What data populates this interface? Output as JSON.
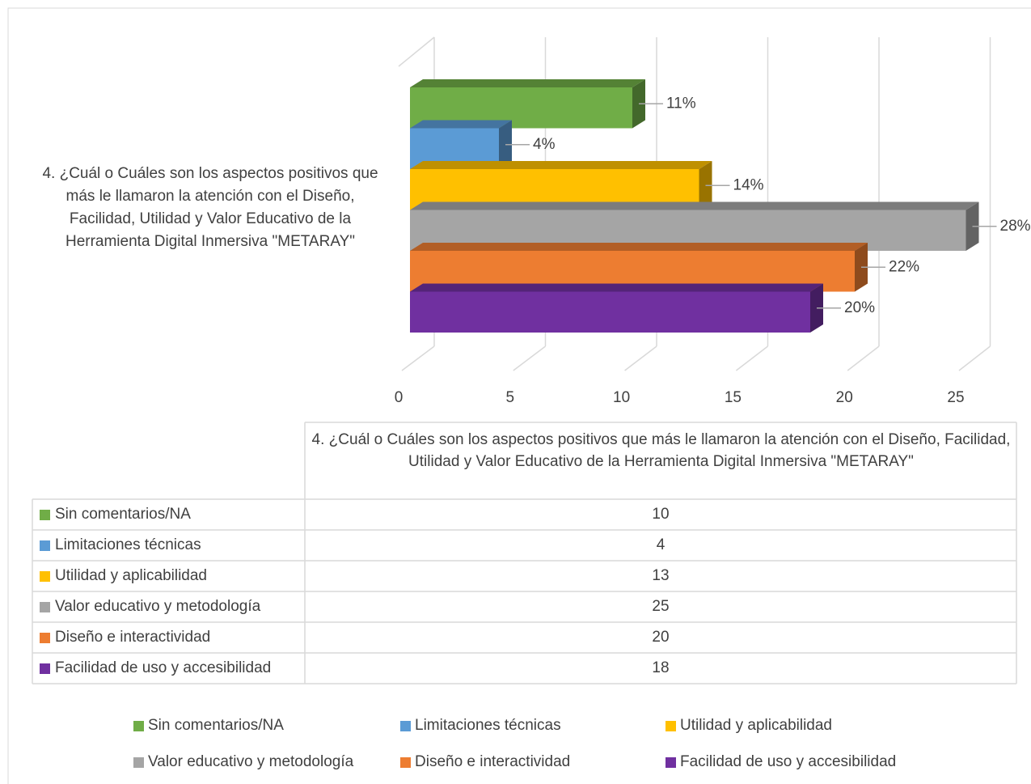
{
  "chart_data": {
    "type": "bar",
    "orientation": "horizontal",
    "categories": [
      "4. ¿Cuál o Cuáles son los aspectos positivos que más le llamaron la atención con el Diseño, Facilidad, Utilidad y Valor Educativo de la Herramienta Digital Inmersiva \"METARAY\""
    ],
    "series": [
      {
        "name": "Sin comentarios/NA",
        "color": "#70ad47",
        "values": [
          10
        ],
        "percent_labels": [
          "11%"
        ]
      },
      {
        "name": "Limitaciones técnicas",
        "color": "#5b9bd5",
        "values": [
          4
        ],
        "percent_labels": [
          "4%"
        ]
      },
      {
        "name": "Utilidad y aplicabilidad",
        "color": "#ffc000",
        "values": [
          13
        ],
        "percent_labels": [
          "14%"
        ]
      },
      {
        "name": "Valor educativo y metodología",
        "color": "#a5a5a5",
        "values": [
          25
        ],
        "percent_labels": [
          "28%"
        ]
      },
      {
        "name": "Diseño e interactividad",
        "color": "#ed7d31",
        "values": [
          20
        ],
        "percent_labels": [
          "22%"
        ]
      },
      {
        "name": "Facilidad de uso y accesibilidad",
        "color": "#7030a0",
        "values": [
          18
        ],
        "percent_labels": [
          "20%"
        ]
      }
    ],
    "xlim": [
      0,
      25
    ],
    "xticks": [
      0,
      5,
      10,
      15,
      20,
      25
    ],
    "grid": true,
    "legend": "bottom"
  }
}
